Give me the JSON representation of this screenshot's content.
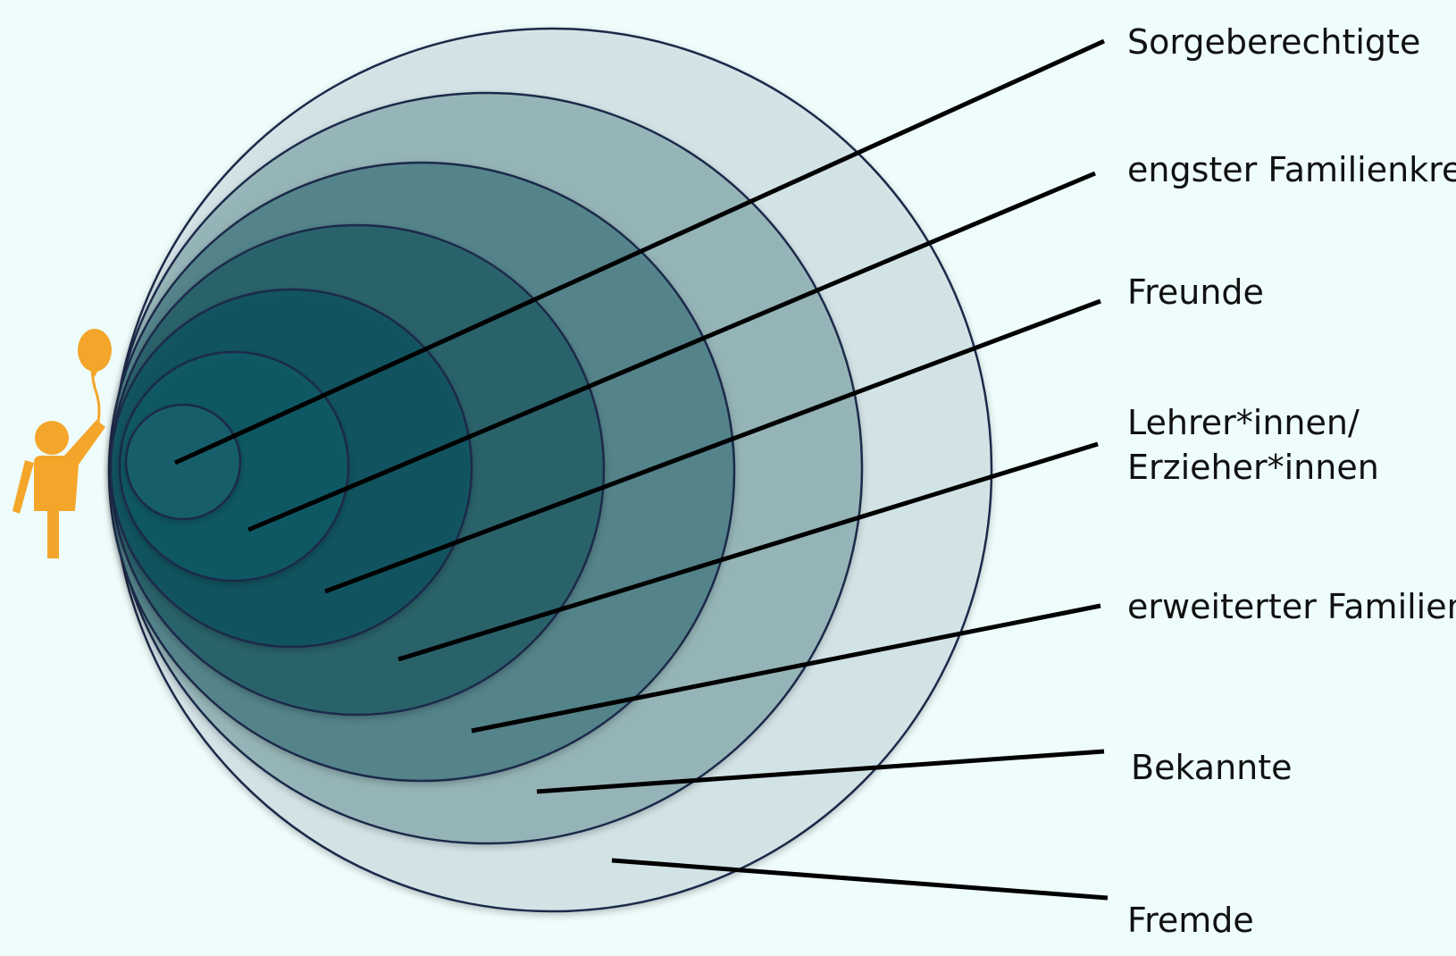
{
  "diagram": {
    "rings": [
      {
        "label_lines": [
          "Sorgeberechtigte"
        ],
        "color": "#15616d"
      },
      {
        "label_lines": [
          "engster Familienkreis"
        ],
        "color": "#135a66"
      },
      {
        "label_lines": [
          "Freunde"
        ],
        "color": "#12535f"
      },
      {
        "label_lines": [
          "Lehrer*innen/",
          "Erzieher*innen"
        ],
        "color": "#245f69"
      },
      {
        "label_lines": [
          "erweiterter Familienkreis"
        ],
        "color": "#4e7f86"
      },
      {
        "label_lines": [
          "Bekannte"
        ],
        "color": "#8fb0b4"
      },
      {
        "label_lines": [
          "Fremde"
        ],
        "color": "#d2e4e6"
      }
    ],
    "outline_color": "#1b2a4a",
    "figure_color": "#f4a62a",
    "figure_icon": "child-with-balloon-icon"
  }
}
